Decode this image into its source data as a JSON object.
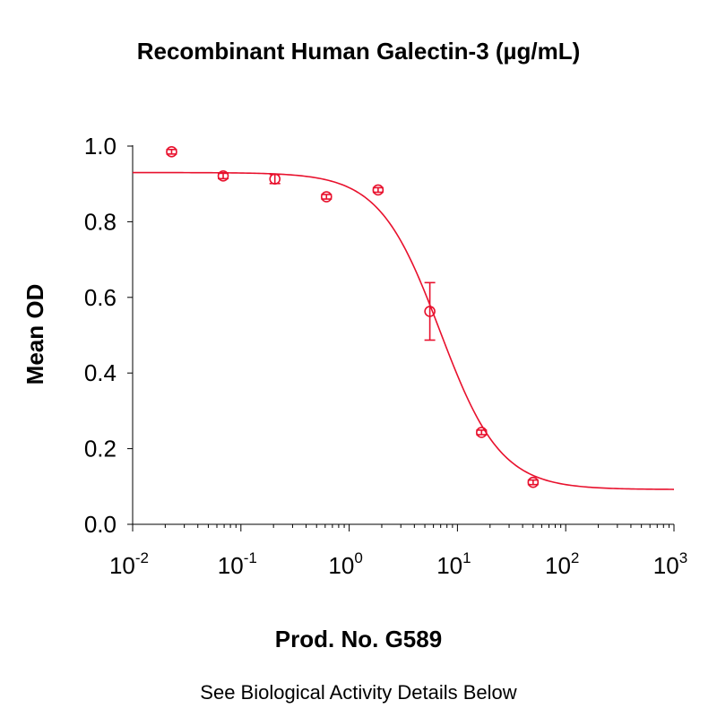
{
  "chart_data": {
    "type": "scatter",
    "title": "Recombinant Human Galectin-3 (µg/mL)",
    "xlabel": "Prod. No. G589",
    "ylabel": "Mean OD",
    "x_scale": "log",
    "xlim": [
      0.01,
      1000
    ],
    "ylim": [
      0.0,
      1.0
    ],
    "x_ticks": [
      {
        "base": "10",
        "exp": "-2"
      },
      {
        "base": "10",
        "exp": "-1"
      },
      {
        "base": "10",
        "exp": "0"
      },
      {
        "base": "10",
        "exp": "1"
      },
      {
        "base": "10",
        "exp": "2"
      },
      {
        "base": "10",
        "exp": "3"
      }
    ],
    "y_ticks": [
      "0.0",
      "0.2",
      "0.4",
      "0.6",
      "0.8",
      "1.0"
    ],
    "series": [
      {
        "points": [
          {
            "x": 0.0229,
            "y": 0.985,
            "err": 0.006
          },
          {
            "x": 0.0686,
            "y": 0.921,
            "err": 0.007
          },
          {
            "x": 0.206,
            "y": 0.913,
            "err": 0.012
          },
          {
            "x": 0.617,
            "y": 0.866,
            "err": 0.006
          },
          {
            "x": 1.85,
            "y": 0.884,
            "err": 0.006
          },
          {
            "x": 5.56,
            "y": 0.563,
            "err": 0.076
          },
          {
            "x": 16.7,
            "y": 0.243,
            "err": 0.006
          },
          {
            "x": 50.0,
            "y": 0.111,
            "err": 0.006
          }
        ],
        "fit": {
          "model": "4PL",
          "top": 0.93,
          "bottom": 0.092,
          "ec50": 6.9,
          "hill": 1.55,
          "x_range": [
            0.01,
            1000
          ]
        }
      }
    ],
    "color": "#e8112d",
    "grid": false,
    "legend": "none"
  },
  "footer_note": "See Biological Activity Details Below"
}
